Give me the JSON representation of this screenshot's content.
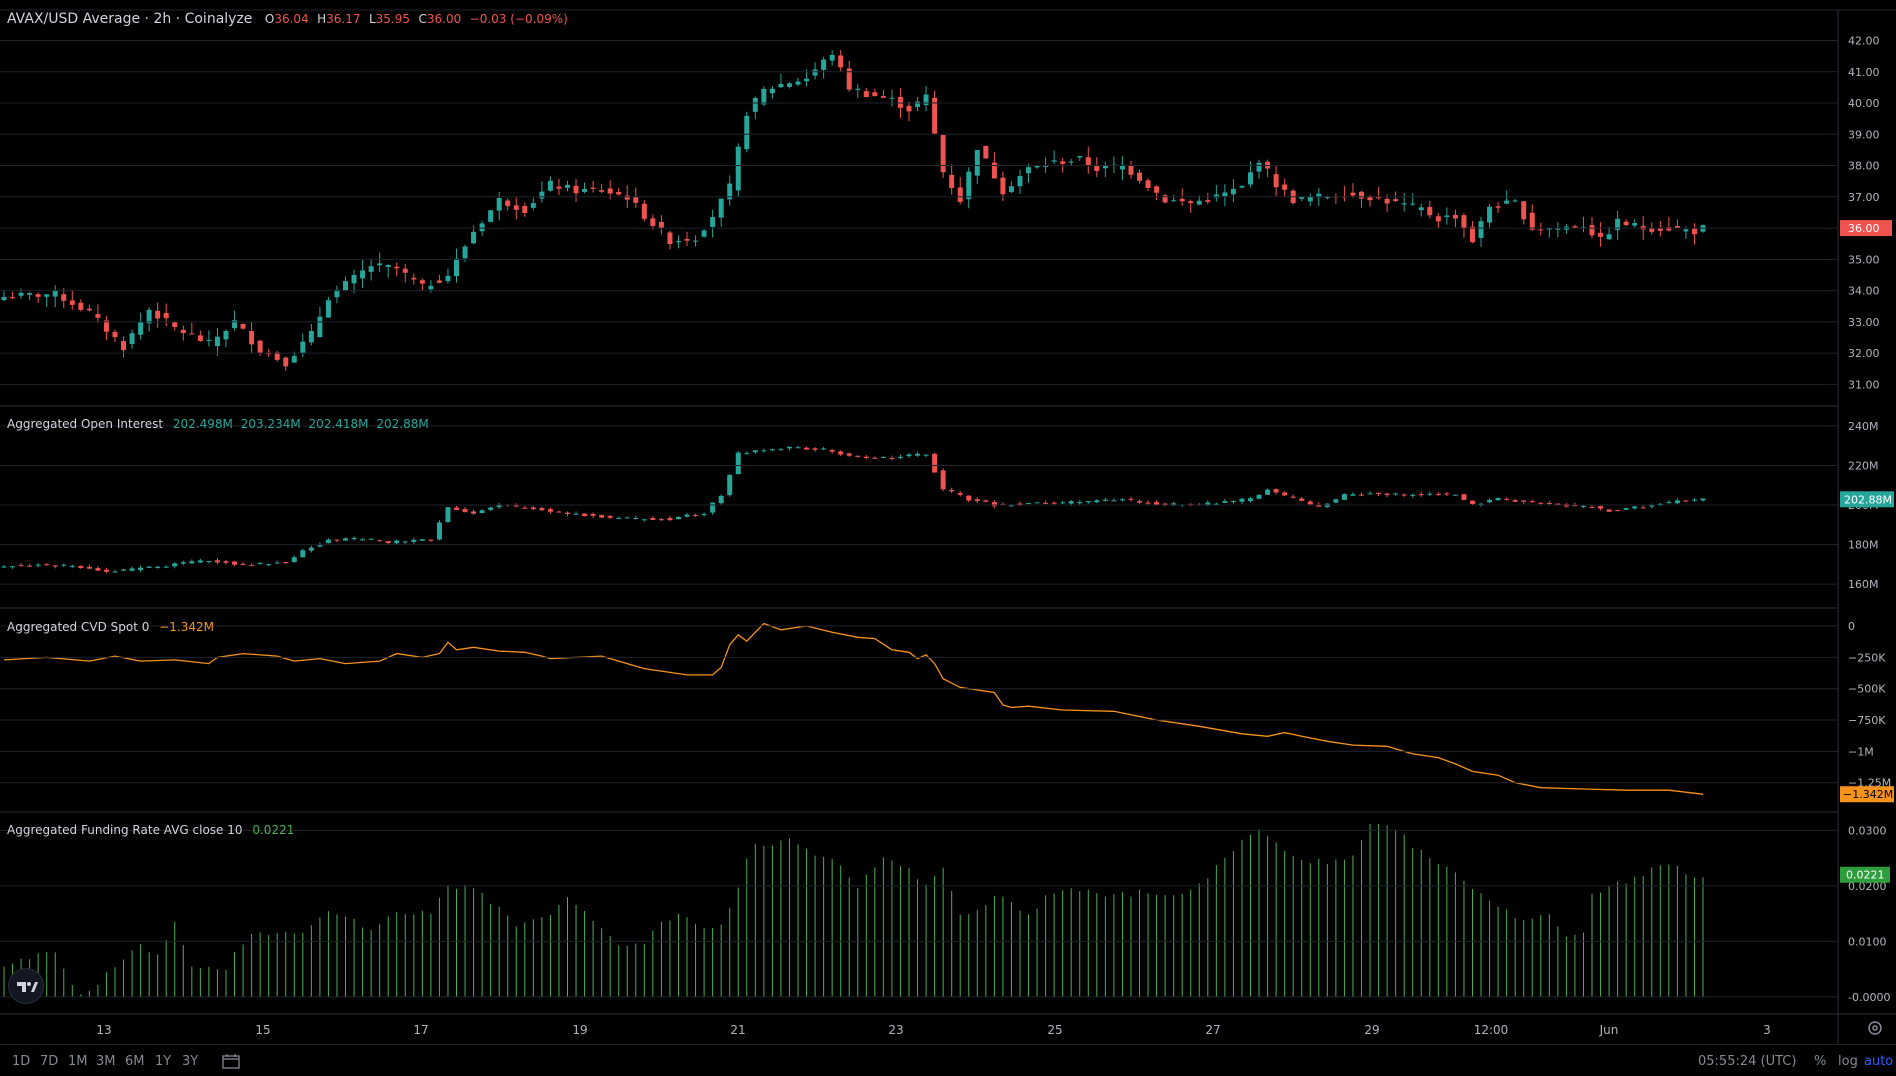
{
  "main_legend": {
    "title": "AVAX/USD Average · 2h · Coinalyze",
    "o_label": "O",
    "o_value": "36.04",
    "h_label": "H",
    "h_value": "36.17",
    "l_label": "L",
    "l_value": "35.95",
    "c_label": "C",
    "c_value": "36.00",
    "change": "−0.03 (−0.09%)"
  },
  "oi_legend": {
    "title": "Aggregated Open Interest",
    "values": [
      "202.498M",
      "203.234M",
      "202.418M",
      "202.88M"
    ]
  },
  "cvd_legend": {
    "title": "Aggregated CVD Spot 0",
    "value": "−1.342M"
  },
  "funding_legend": {
    "title": "Aggregated Funding Rate AVG close 10",
    "value": "0.0221"
  },
  "colors": {
    "up": "#26a69a",
    "down": "#ef5350",
    "cvd": "#f7931a",
    "funding": "#4caf50",
    "grid": "#1e222d",
    "axis_text": "#b2b5be",
    "background": "#000000"
  },
  "x_axis": {
    "ticks": [
      "13",
      "15",
      "17",
      "19",
      "21",
      "23",
      "25",
      "27",
      "29",
      "12:00",
      "Jun",
      "3"
    ]
  },
  "toolbar": {
    "timeframes": [
      "1D",
      "7D",
      "1M",
      "3M",
      "6M",
      "1Y",
      "3Y"
    ],
    "clock": "05:55:24 (UTC)",
    "percent": "%",
    "log": "log",
    "auto": "auto"
  },
  "chart_data": [
    {
      "type": "candlestick",
      "name": "AVAX/USD Average · 2h · Coinalyze",
      "ylim": [
        30.5,
        42.4
      ],
      "y_ticks": [
        "42.00",
        "41.00",
        "40.00",
        "39.00",
        "38.00",
        "37.00",
        "36.00",
        "35.00",
        "34.00",
        "33.00",
        "32.00",
        "31.00"
      ],
      "last_price_label": "36.00",
      "close_anchors": [
        [
          0,
          33.8
        ],
        [
          6,
          33.9
        ],
        [
          10,
          33.3
        ],
        [
          14,
          32.2
        ],
        [
          17,
          33.4
        ],
        [
          20,
          32.8
        ],
        [
          24,
          32.3
        ],
        [
          27,
          33.0
        ],
        [
          30,
          32.1
        ],
        [
          33,
          31.7
        ],
        [
          36,
          32.6
        ],
        [
          38,
          33.8
        ],
        [
          40,
          34.2
        ],
        [
          43,
          34.8
        ],
        [
          46,
          34.7
        ],
        [
          49,
          34.1
        ],
        [
          52,
          34.5
        ],
        [
          55,
          35.9
        ],
        [
          58,
          36.9
        ],
        [
          61,
          36.6
        ],
        [
          64,
          37.4
        ],
        [
          67,
          37.2
        ],
        [
          70,
          37.2
        ],
        [
          73,
          37.0
        ],
        [
          75,
          36.4
        ],
        [
          78,
          35.6
        ],
        [
          81,
          35.7
        ],
        [
          83,
          36.4
        ],
        [
          85,
          37.3
        ],
        [
          87,
          39.7
        ],
        [
          89,
          40.4
        ],
        [
          91,
          40.6
        ],
        [
          94,
          40.8
        ],
        [
          97,
          41.6
        ],
        [
          99,
          40.5
        ],
        [
          101,
          40.3
        ],
        [
          104,
          40.1
        ],
        [
          106,
          39.8
        ],
        [
          108,
          40.2
        ],
        [
          110,
          37.8
        ],
        [
          112,
          36.9
        ],
        [
          114,
          38.6
        ],
        [
          117,
          37.2
        ],
        [
          120,
          37.9
        ],
        [
          123,
          38.1
        ],
        [
          126,
          38.2
        ],
        [
          128,
          37.9
        ],
        [
          131,
          38.0
        ],
        [
          133,
          37.6
        ],
        [
          136,
          36.9
        ],
        [
          139,
          36.8
        ],
        [
          142,
          37.0
        ],
        [
          145,
          37.3
        ],
        [
          147,
          38.2
        ],
        [
          149,
          37.4
        ],
        [
          151,
          36.9
        ],
        [
          154,
          37.0
        ],
        [
          157,
          37.1
        ],
        [
          160,
          37.0
        ],
        [
          163,
          36.8
        ],
        [
          166,
          36.6
        ],
        [
          168,
          36.3
        ],
        [
          170,
          36.4
        ],
        [
          172,
          35.6
        ],
        [
          174,
          36.7
        ],
        [
          177,
          36.8
        ],
        [
          179,
          36.0
        ],
        [
          182,
          36.0
        ],
        [
          185,
          36.1
        ],
        [
          187,
          35.6
        ],
        [
          189,
          36.2
        ],
        [
          192,
          36.0
        ],
        [
          195,
          36.0
        ],
        [
          198,
          35.9
        ],
        [
          199,
          36.0
        ]
      ]
    },
    {
      "type": "candlestick",
      "name": "Aggregated Open Interest",
      "ylim": [
        152,
        245
      ],
      "y_ticks": [
        "240M",
        "220M",
        "200M",
        "180M",
        "160M"
      ],
      "last_value_label": "202.88M",
      "close_anchors": [
        [
          0,
          169
        ],
        [
          5,
          170
        ],
        [
          10,
          168
        ],
        [
          12,
          166
        ],
        [
          16,
          168
        ],
        [
          20,
          170
        ],
        [
          24,
          172
        ],
        [
          28,
          170
        ],
        [
          33,
          171
        ],
        [
          35,
          177
        ],
        [
          38,
          182
        ],
        [
          42,
          183
        ],
        [
          45,
          181
        ],
        [
          50,
          183
        ],
        [
          52,
          199
        ],
        [
          55,
          196
        ],
        [
          58,
          200
        ],
        [
          62,
          198
        ],
        [
          66,
          196
        ],
        [
          70,
          194
        ],
        [
          74,
          193
        ],
        [
          78,
          193
        ],
        [
          82,
          196
        ],
        [
          84,
          205
        ],
        [
          86,
          226
        ],
        [
          89,
          228
        ],
        [
          92,
          229
        ],
        [
          96,
          228
        ],
        [
          100,
          224
        ],
        [
          104,
          224
        ],
        [
          108,
          226
        ],
        [
          110,
          208
        ],
        [
          113,
          203
        ],
        [
          116,
          200
        ],
        [
          120,
          201
        ],
        [
          124,
          201
        ],
        [
          128,
          202
        ],
        [
          131,
          203
        ],
        [
          134,
          201
        ],
        [
          138,
          200
        ],
        [
          142,
          201
        ],
        [
          146,
          203
        ],
        [
          148,
          208
        ],
        [
          151,
          203
        ],
        [
          154,
          199
        ],
        [
          157,
          205
        ],
        [
          160,
          206
        ],
        [
          164,
          205
        ],
        [
          167,
          206
        ],
        [
          170,
          205
        ],
        [
          172,
          200
        ],
        [
          175,
          203
        ],
        [
          178,
          202
        ],
        [
          182,
          200
        ],
        [
          186,
          199
        ],
        [
          188,
          197
        ],
        [
          190,
          198
        ],
        [
          193,
          200
        ],
        [
          196,
          202
        ],
        [
          199,
          202.9
        ]
      ]
    },
    {
      "type": "line",
      "name": "Aggregated CVD Spot 0",
      "ylim": [
        -1.42,
        0.08
      ],
      "y_ticks": [
        "0",
        "−250K",
        "−500K",
        "−750K",
        "−1M",
        "−1.25M"
      ],
      "last_value_label": "−1.342M",
      "x": [
        0,
        5,
        10,
        13,
        16,
        20,
        24,
        25,
        28,
        32,
        34,
        37,
        40,
        44,
        46,
        49,
        51,
        52,
        53,
        55,
        58,
        61,
        63,
        64,
        67,
        70,
        75,
        80,
        83,
        84,
        85,
        86,
        87,
        89,
        91,
        94,
        97,
        100,
        102,
        104,
        106,
        107,
        108,
        109,
        110,
        112,
        113,
        116,
        117,
        118,
        120,
        124,
        130,
        135,
        140,
        145,
        148,
        150,
        152,
        155,
        158,
        162,
        165,
        168,
        170,
        172,
        175,
        177,
        180,
        185,
        190,
        195,
        199
      ],
      "values": [
        -0.27,
        -0.25,
        -0.28,
        -0.24,
        -0.28,
        -0.27,
        -0.3,
        -0.25,
        -0.22,
        -0.24,
        -0.28,
        -0.26,
        -0.3,
        -0.28,
        -0.22,
        -0.25,
        -0.22,
        -0.13,
        -0.19,
        -0.17,
        -0.2,
        -0.21,
        -0.24,
        -0.26,
        -0.25,
        -0.24,
        -0.34,
        -0.39,
        -0.39,
        -0.33,
        -0.15,
        -0.07,
        -0.12,
        0.02,
        -0.03,
        0.0,
        -0.05,
        -0.09,
        -0.1,
        -0.19,
        -0.21,
        -0.26,
        -0.23,
        -0.3,
        -0.42,
        -0.49,
        -0.5,
        -0.53,
        -0.63,
        -0.65,
        -0.64,
        -0.67,
        -0.68,
        -0.75,
        -0.8,
        -0.86,
        -0.88,
        -0.85,
        -0.88,
        -0.92,
        -0.95,
        -0.96,
        -1.02,
        -1.05,
        -1.1,
        -1.16,
        -1.19,
        -1.25,
        -1.29,
        -1.3,
        -1.31,
        -1.31,
        -1.342
      ]
    },
    {
      "type": "bar",
      "name": "Aggregated Funding Rate AVG close 10",
      "ylim": [
        -0.002,
        0.0315
      ],
      "y_ticks": [
        "0.0300",
        "0.0200",
        "0.0100",
        "-0.0000"
      ],
      "last_value_label": "0.0221",
      "x": [
        0,
        3,
        6,
        9,
        12,
        14,
        16,
        18,
        20,
        22,
        24,
        26,
        28,
        30,
        32,
        35,
        38,
        40,
        43,
        46,
        48,
        50,
        52,
        55,
        57,
        60,
        63,
        65,
        66,
        68,
        70,
        72,
        75,
        77,
        79,
        82,
        84,
        86,
        87,
        88,
        90,
        92,
        93,
        95,
        97,
        100,
        103,
        105,
        108,
        110,
        112,
        114,
        116,
        118,
        120,
        122,
        125,
        128,
        130,
        133,
        136,
        140,
        143,
        145,
        147,
        148,
        150,
        152,
        155,
        158,
        160,
        163,
        166,
        168,
        170,
        172,
        175,
        178,
        181,
        183,
        185,
        186,
        188,
        190,
        193,
        195,
        197,
        199
      ],
      "values": [
        0.005,
        0.007,
        0.008,
        0.0,
        0.004,
        0.007,
        0.009,
        0.008,
        0.013,
        0.006,
        0.005,
        0.005,
        0.01,
        0.012,
        0.011,
        0.012,
        0.015,
        0.015,
        0.012,
        0.015,
        0.015,
        0.015,
        0.02,
        0.02,
        0.017,
        0.013,
        0.014,
        0.016,
        0.018,
        0.015,
        0.012,
        0.009,
        0.01,
        0.013,
        0.015,
        0.012,
        0.013,
        0.02,
        0.025,
        0.027,
        0.027,
        0.029,
        0.027,
        0.026,
        0.025,
        0.02,
        0.025,
        0.024,
        0.02,
        0.023,
        0.015,
        0.016,
        0.018,
        0.017,
        0.015,
        0.018,
        0.019,
        0.019,
        0.018,
        0.019,
        0.018,
        0.02,
        0.025,
        0.028,
        0.03,
        0.029,
        0.026,
        0.025,
        0.024,
        0.025,
        0.031,
        0.03,
        0.026,
        0.024,
        0.022,
        0.02,
        0.016,
        0.014,
        0.015,
        0.011,
        0.012,
        0.018,
        0.02,
        0.021,
        0.023,
        0.024,
        0.022,
        0.022
      ]
    }
  ]
}
